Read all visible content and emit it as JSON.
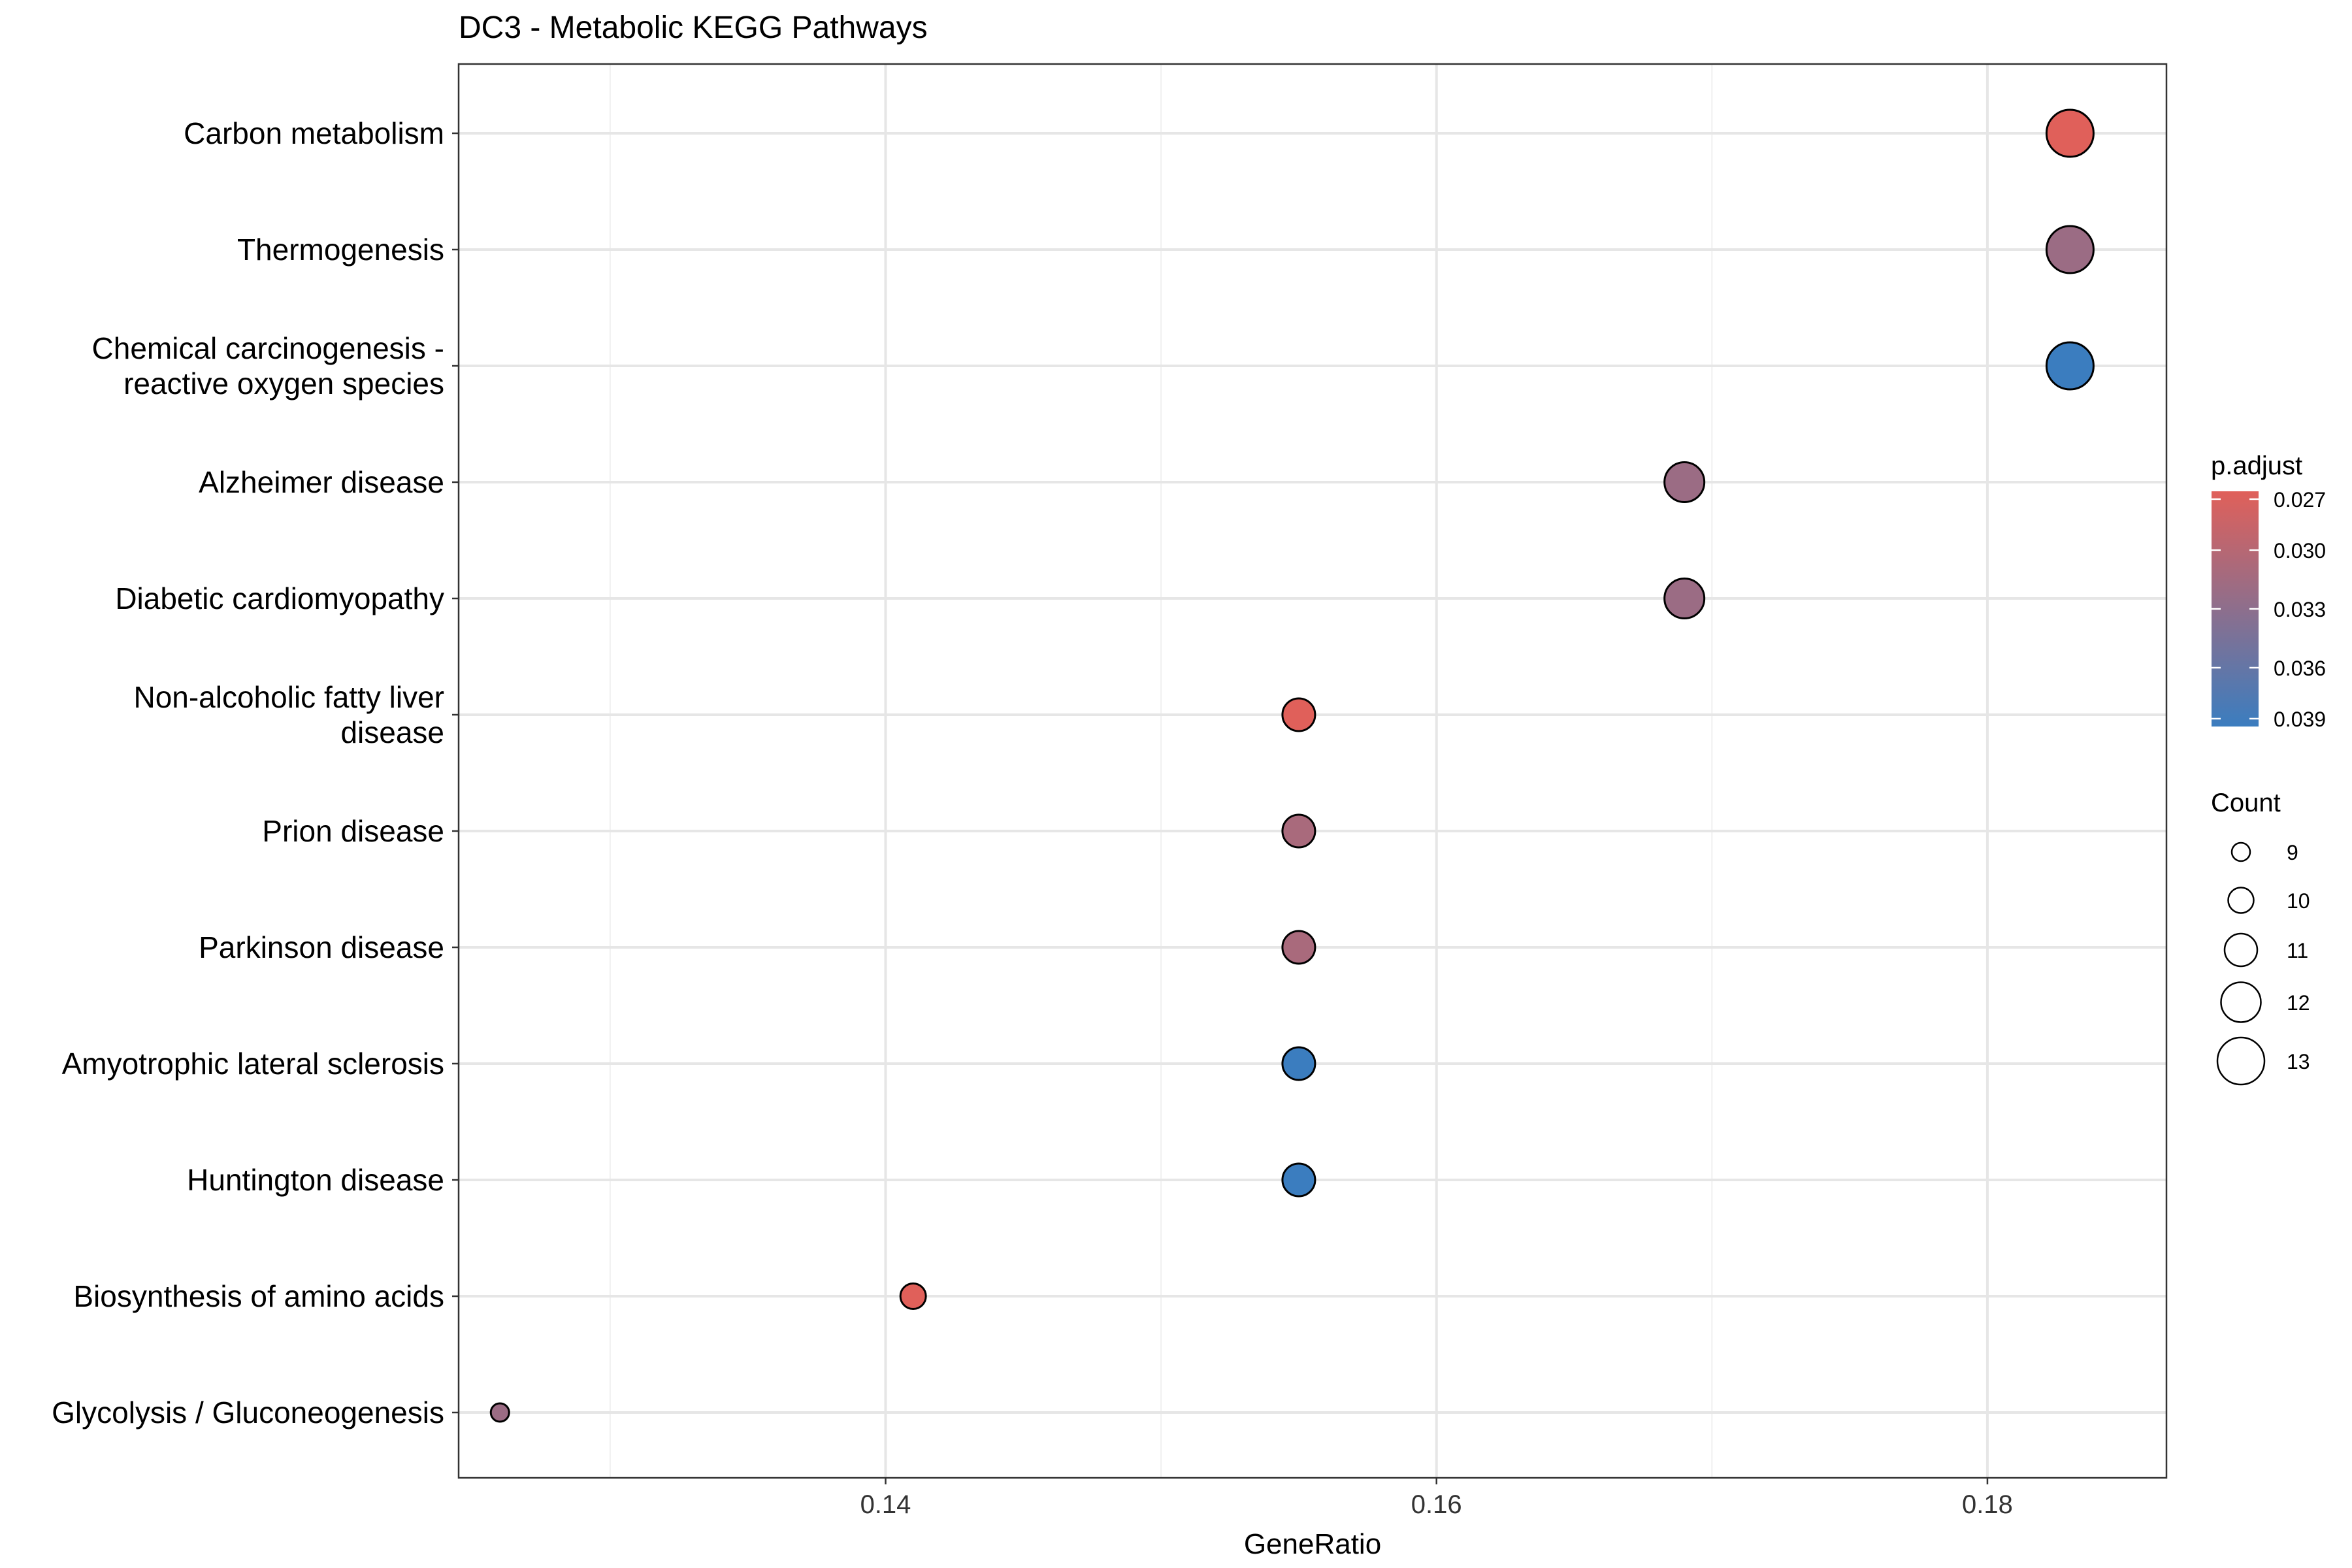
{
  "chart_data": {
    "type": "scatter",
    "title": "DC3 - Metabolic KEGG Pathways",
    "xlabel": "GeneRatio",
    "ylabel": "",
    "xlim": [
      0.1245,
      0.1865
    ],
    "x_ticks": [
      0.14,
      0.16,
      0.18
    ],
    "x_tick_labels": [
      "0.14",
      "0.16",
      "0.18"
    ],
    "grid": true,
    "categories": [
      {
        "label": [
          "Carbon metabolism"
        ]
      },
      {
        "label": [
          "Thermogenesis"
        ]
      },
      {
        "label": [
          "Chemical carcinogenesis -",
          "reactive oxygen species"
        ]
      },
      {
        "label": [
          "Alzheimer disease"
        ]
      },
      {
        "label": [
          "Diabetic cardiomyopathy"
        ]
      },
      {
        "label": [
          "Non-alcoholic fatty liver",
          "disease"
        ]
      },
      {
        "label": [
          "Prion disease"
        ]
      },
      {
        "label": [
          "Parkinson disease"
        ]
      },
      {
        "label": [
          "Amyotrophic lateral sclerosis"
        ]
      },
      {
        "label": [
          "Huntington disease"
        ]
      },
      {
        "label": [
          "Biosynthesis of amino acids"
        ]
      },
      {
        "label": [
          "Glycolysis / Gluconeogenesis"
        ]
      }
    ],
    "points": [
      {
        "x": 0.183,
        "count": 13,
        "p_adjust": 0.027
      },
      {
        "x": 0.183,
        "count": 13,
        "p_adjust": 0.032
      },
      {
        "x": 0.183,
        "count": 13,
        "p_adjust": 0.039
      },
      {
        "x": 0.169,
        "count": 12,
        "p_adjust": 0.032
      },
      {
        "x": 0.169,
        "count": 12,
        "p_adjust": 0.032
      },
      {
        "x": 0.155,
        "count": 11,
        "p_adjust": 0.027
      },
      {
        "x": 0.155,
        "count": 11,
        "p_adjust": 0.031
      },
      {
        "x": 0.155,
        "count": 11,
        "p_adjust": 0.031
      },
      {
        "x": 0.155,
        "count": 11,
        "p_adjust": 0.039
      },
      {
        "x": 0.155,
        "count": 11,
        "p_adjust": 0.039
      },
      {
        "x": 0.141,
        "count": 10,
        "p_adjust": 0.027
      },
      {
        "x": 0.126,
        "count": 9,
        "p_adjust": 0.032
      }
    ],
    "color_legend": {
      "title": "p.adjust",
      "range": [
        0.027,
        0.039
      ],
      "low_color": "#E0605A",
      "high_color": "#3B7DBF",
      "ticks": [
        0.027,
        0.03,
        0.033,
        0.036,
        0.039
      ],
      "tick_labels": [
        "0.027",
        "0.030",
        "0.033",
        "0.036",
        "0.039"
      ]
    },
    "size_legend": {
      "title": "Count",
      "values": [
        9,
        10,
        11,
        12,
        13
      ],
      "labels": [
        "9",
        "10",
        "11",
        "12",
        "13"
      ]
    }
  }
}
